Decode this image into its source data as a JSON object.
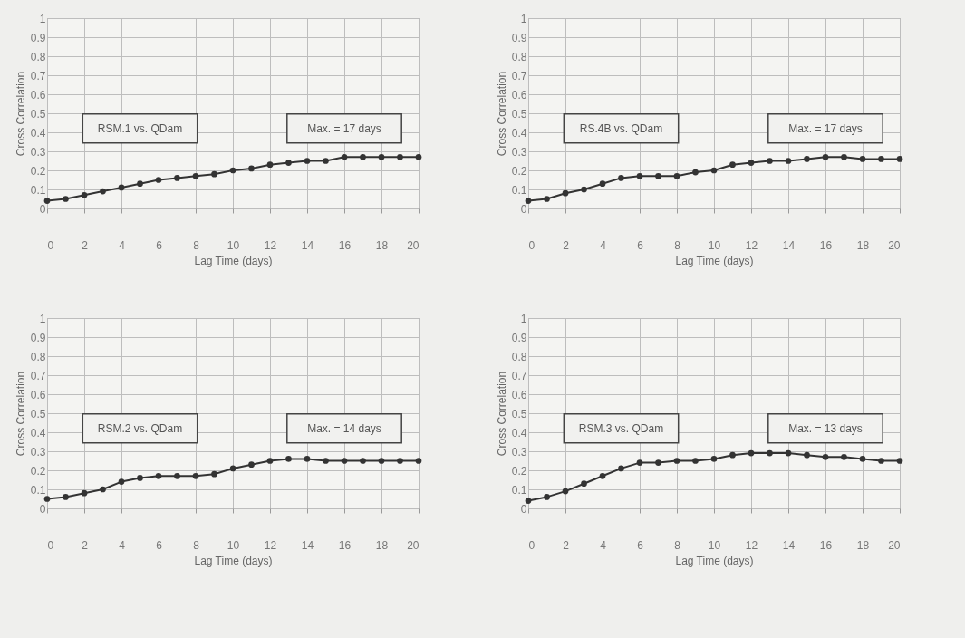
{
  "chart_data": [
    {
      "type": "line",
      "xlabel": "Lag Time (days)",
      "ylabel": "Cross Correlation",
      "annotations": [
        "RSM.1 vs. QDam",
        "Max. = 17 days"
      ],
      "x": [
        0,
        1,
        2,
        3,
        4,
        5,
        6,
        7,
        8,
        9,
        10,
        11,
        12,
        13,
        14,
        15,
        16,
        17,
        18,
        19,
        20
      ],
      "series": [
        {
          "color": "#333333",
          "values": [
            0.04,
            0.05,
            0.07,
            0.09,
            0.11,
            0.13,
            0.15,
            0.16,
            0.17,
            0.18,
            0.2,
            0.21,
            0.23,
            0.24,
            0.25,
            0.25,
            0.27,
            0.27,
            0.27,
            0.27,
            0.27
          ]
        }
      ],
      "xlim": [
        0,
        20
      ],
      "xticks": [
        0,
        2,
        4,
        6,
        8,
        10,
        12,
        14,
        16,
        18,
        20
      ],
      "ylim": [
        0,
        1
      ],
      "yticks": [
        0,
        0.1,
        0.2,
        0.3,
        0.4,
        0.5,
        0.6,
        0.7,
        0.8,
        0.9,
        1
      ],
      "grid": true,
      "marker": "circle"
    },
    {
      "type": "line",
      "xlabel": "Lag Time (days)",
      "ylabel": "Cross Correlation",
      "annotations": [
        "RS.4B vs. QDam",
        "Max. = 17 days"
      ],
      "x": [
        0,
        1,
        2,
        3,
        4,
        5,
        6,
        7,
        8,
        9,
        10,
        11,
        12,
        13,
        14,
        15,
        16,
        17,
        18,
        19,
        20
      ],
      "series": [
        {
          "color": "#333333",
          "values": [
            0.04,
            0.05,
            0.08,
            0.1,
            0.13,
            0.16,
            0.17,
            0.17,
            0.17,
            0.19,
            0.2,
            0.23,
            0.24,
            0.25,
            0.25,
            0.26,
            0.27,
            0.27,
            0.26,
            0.26,
            0.26
          ]
        }
      ],
      "xlim": [
        0,
        20
      ],
      "xticks": [
        0,
        2,
        4,
        6,
        8,
        10,
        12,
        14,
        16,
        18,
        20
      ],
      "ylim": [
        0,
        1
      ],
      "yticks": [
        0,
        0.1,
        0.2,
        0.3,
        0.4,
        0.5,
        0.6,
        0.7,
        0.8,
        0.9,
        1
      ],
      "grid": true,
      "marker": "circle"
    },
    {
      "type": "line",
      "xlabel": "Lag Time (days)",
      "ylabel": "Cross Correlation",
      "annotations": [
        "RSM.2 vs. QDam",
        "Max. = 14 days"
      ],
      "x": [
        0,
        1,
        2,
        3,
        4,
        5,
        6,
        7,
        8,
        9,
        10,
        11,
        12,
        13,
        14,
        15,
        16,
        17,
        18,
        19,
        20
      ],
      "series": [
        {
          "color": "#333333",
          "values": [
            0.05,
            0.06,
            0.08,
            0.1,
            0.14,
            0.16,
            0.17,
            0.17,
            0.17,
            0.18,
            0.21,
            0.23,
            0.25,
            0.26,
            0.26,
            0.25,
            0.25,
            0.25,
            0.25,
            0.25,
            0.25
          ]
        }
      ],
      "xlim": [
        0,
        20
      ],
      "xticks": [
        0,
        2,
        4,
        6,
        8,
        10,
        12,
        14,
        16,
        18,
        20
      ],
      "ylim": [
        0,
        1
      ],
      "yticks": [
        0,
        0.1,
        0.2,
        0.3,
        0.4,
        0.5,
        0.6,
        0.7,
        0.8,
        0.9,
        1
      ],
      "grid": true,
      "marker": "circle"
    },
    {
      "type": "line",
      "xlabel": "Lag Time (days)",
      "ylabel": "Cross Correlation",
      "annotations": [
        "RSM.3 vs. QDam",
        "Max. = 13 days"
      ],
      "x": [
        0,
        1,
        2,
        3,
        4,
        5,
        6,
        7,
        8,
        9,
        10,
        11,
        12,
        13,
        14,
        15,
        16,
        17,
        18,
        19,
        20
      ],
      "series": [
        {
          "color": "#333333",
          "values": [
            0.04,
            0.06,
            0.09,
            0.13,
            0.17,
            0.21,
            0.24,
            0.24,
            0.25,
            0.25,
            0.26,
            0.28,
            0.29,
            0.29,
            0.29,
            0.28,
            0.27,
            0.27,
            0.26,
            0.25,
            0.25
          ]
        }
      ],
      "xlim": [
        0,
        20
      ],
      "xticks": [
        0,
        2,
        4,
        6,
        8,
        10,
        12,
        14,
        16,
        18,
        20
      ],
      "ylim": [
        0,
        1
      ],
      "yticks": [
        0,
        0.1,
        0.2,
        0.3,
        0.4,
        0.5,
        0.6,
        0.7,
        0.8,
        0.9,
        1
      ],
      "grid": true,
      "marker": "circle"
    }
  ]
}
